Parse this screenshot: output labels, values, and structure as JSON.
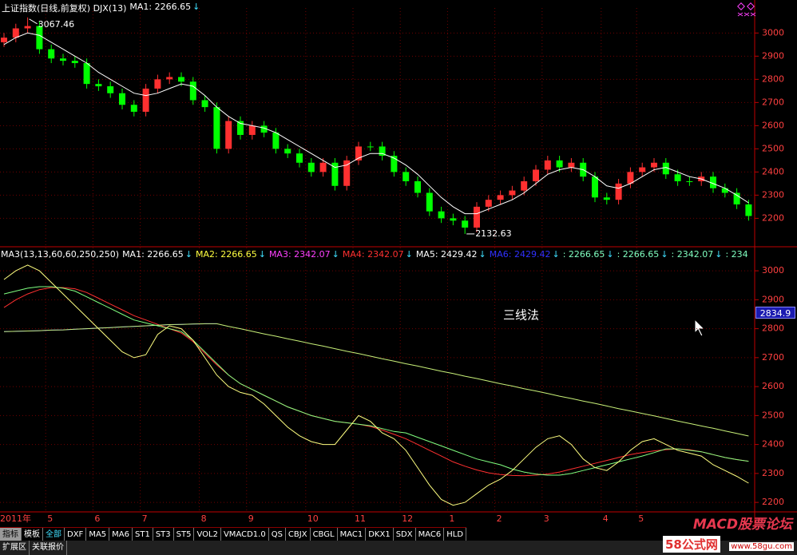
{
  "ui": {
    "top_header": "上证指数(日线,前复权) DJX(13)",
    "top_ma": "MA1: 2266.65",
    "arrow": "↓",
    "bottom_header": [
      {
        "text": "MA3(13,13,60,60,250,250)",
        "color": "#ffffff"
      },
      {
        "text": "MA1: 2266.65",
        "color": "#ffffff"
      },
      {
        "text": "MA2: 2266.65",
        "color": "#ffff40"
      },
      {
        "text": "MA3: 2342.07",
        "color": "#ff40ff"
      },
      {
        "text": "MA4: 2342.07",
        "color": "#ff3030"
      },
      {
        "text": "MA5: 2429.42",
        "color": "#ffffff"
      },
      {
        "text": "MA6: 2429.42",
        "color": "#3030ff"
      },
      {
        "text": ": 2266.65",
        "color": "#80ffc0"
      },
      {
        "text": ": 2266.65",
        "color": "#80ffc0"
      },
      {
        "text": ": 2342.07",
        "color": "#80ffc0"
      },
      {
        "text": ": 234",
        "color": "#80ffc0"
      }
    ],
    "cursor_value": "2834.9",
    "toolbar": [
      "指标",
      "模板",
      "全部",
      "DXF",
      "MA5",
      "MA6",
      "ST1",
      "ST3",
      "ST5",
      "VOL2",
      "VMACD1.0",
      "QS",
      "CBJX",
      "CBGL",
      "MAC1",
      "DKX1",
      "SDX",
      "MAC6",
      "HLD"
    ],
    "toolbar2": [
      "扩展区",
      "关联报价"
    ],
    "watermark_title": "MACD股票论坛",
    "watermark_site": "58公式网",
    "watermark_url": "www.58gu.com"
  },
  "chart_data": [
    {
      "type": "candlestick",
      "categories": [
        "2011年",
        null,
        null,
        null,
        "5",
        null,
        null,
        null,
        "6",
        null,
        null,
        null,
        "7",
        null,
        null,
        null,
        null,
        "8",
        null,
        null,
        null,
        "9",
        null,
        null,
        null,
        null,
        "10",
        null,
        null,
        null,
        "11",
        null,
        null,
        null,
        "12",
        null,
        null,
        null,
        "1",
        null,
        null,
        null,
        "2",
        null,
        null,
        null,
        "3",
        null,
        null,
        null,
        null,
        "4",
        null,
        null,
        "5",
        null,
        null,
        null,
        null,
        null,
        null,
        null,
        null,
        null
      ],
      "open": [
        2960,
        2980,
        3020,
        3030,
        2930,
        2890,
        2880,
        2870,
        2780,
        2770,
        2740,
        2690,
        2660,
        2760,
        2800,
        2810,
        2790,
        2710,
        2680,
        2500,
        2620,
        2560,
        2600,
        2570,
        2500,
        2480,
        2440,
        2400,
        2440,
        2340,
        2450,
        2510,
        2510,
        2470,
        2400,
        2360,
        2310,
        2230,
        2200,
        2190,
        2160,
        2250,
        2280,
        2300,
        2320,
        2360,
        2410,
        2450,
        2420,
        2440,
        2380,
        2290,
        2280,
        2350,
        2400,
        2420,
        2440,
        2390,
        2360,
        2360,
        2380,
        2330,
        2310,
        2260
      ],
      "high": [
        3000,
        3040,
        3067.46,
        3050,
        2950,
        2910,
        2900,
        2890,
        2800,
        2790,
        2760,
        2710,
        2780,
        2820,
        2830,
        2830,
        2810,
        2730,
        2700,
        2640,
        2640,
        2620,
        2620,
        2590,
        2520,
        2500,
        2460,
        2460,
        2460,
        2470,
        2530,
        2530,
        2530,
        2490,
        2420,
        2380,
        2330,
        2250,
        2220,
        2210,
        2270,
        2300,
        2320,
        2340,
        2380,
        2430,
        2470,
        2470,
        2460,
        2460,
        2400,
        2310,
        2370,
        2420,
        2440,
        2460,
        2460,
        2410,
        2380,
        2400,
        2400,
        2350,
        2330,
        2280
      ],
      "low": [
        2940,
        2960,
        3000,
        2910,
        2870,
        2860,
        2850,
        2760,
        2750,
        2720,
        2670,
        2640,
        2640,
        2740,
        2780,
        2770,
        2690,
        2660,
        2480,
        2480,
        2540,
        2540,
        2550,
        2480,
        2460,
        2420,
        2380,
        2380,
        2320,
        2320,
        2430,
        2490,
        2450,
        2380,
        2340,
        2290,
        2210,
        2180,
        2170,
        2132.63,
        2140,
        2230,
        2260,
        2280,
        2300,
        2340,
        2390,
        2400,
        2400,
        2360,
        2270,
        2260,
        2260,
        2330,
        2380,
        2400,
        2370,
        2340,
        2340,
        2340,
        2310,
        2290,
        2240,
        2190
      ],
      "close": [
        2980,
        3020,
        3030,
        2930,
        2890,
        2880,
        2870,
        2780,
        2770,
        2740,
        2690,
        2660,
        2760,
        2800,
        2810,
        2790,
        2710,
        2680,
        2500,
        2620,
        2560,
        2600,
        2570,
        2500,
        2480,
        2440,
        2400,
        2440,
        2340,
        2450,
        2510,
        2510,
        2470,
        2400,
        2360,
        2310,
        2230,
        2200,
        2190,
        2160,
        2250,
        2280,
        2300,
        2320,
        2360,
        2410,
        2450,
        2420,
        2440,
        2380,
        2290,
        2280,
        2350,
        2400,
        2420,
        2440,
        2390,
        2360,
        2360,
        2380,
        2330,
        2310,
        2260,
        2210
      ],
      "up_color": "#ff3030",
      "down_color": "#00ff00",
      "high_label": "3067.46",
      "low_label": "2132.63",
      "series": [
        {
          "color": "#ffffff",
          "values": [
            2950,
            2980,
            3000,
            2990,
            2960,
            2930,
            2900,
            2870,
            2830,
            2800,
            2770,
            2740,
            2730,
            2740,
            2760,
            2780,
            2770,
            2730,
            2680,
            2640,
            2610,
            2600,
            2590,
            2570,
            2540,
            2510,
            2480,
            2450,
            2420,
            2430,
            2460,
            2480,
            2480,
            2460,
            2430,
            2390,
            2340,
            2290,
            2250,
            2220,
            2220,
            2240,
            2260,
            2280,
            2310,
            2350,
            2390,
            2410,
            2420,
            2410,
            2380,
            2340,
            2330,
            2350,
            2380,
            2410,
            2420,
            2400,
            2380,
            2370,
            2350,
            2330,
            2300,
            2266.65
          ]
        }
      ],
      "ylim": [
        2091,
        3108
      ],
      "yticks": [
        2200,
        2300,
        2400,
        2500,
        2600,
        2700,
        2800,
        2900,
        3000
      ],
      "grid": true
    },
    {
      "type": "line",
      "annotation": "三线法",
      "series": [
        {
          "color": "#3030ff",
          "values": [
            2790,
            2791,
            2792,
            2793,
            2795,
            2796,
            2798,
            2800,
            2802,
            2804,
            2806,
            2808,
            2810,
            2812,
            2814,
            2815,
            2816,
            2817,
            2817,
            null,
            null,
            null,
            null,
            null,
            null,
            null,
            null,
            null,
            null,
            null,
            null,
            null,
            null,
            null,
            null,
            null,
            null,
            null,
            null,
            null,
            null,
            null,
            null,
            null,
            null,
            null,
            null,
            null,
            null,
            null,
            null,
            null,
            null,
            null,
            null,
            null,
            null,
            null,
            null,
            null,
            null,
            null,
            null,
            null
          ]
        },
        {
          "color": "#ff3030",
          "values": [
            2873,
            2900,
            2920,
            2935,
            2942,
            2942,
            2938,
            2925,
            2905,
            2885,
            2865,
            2845,
            2830,
            2815,
            2800,
            2785,
            2755,
            2715,
            2675,
            2640,
            2610,
            2590,
            2570,
            2550,
            2530,
            2515,
            2500,
            2490,
            2480,
            2475,
            2470,
            2462,
            2450,
            2435,
            2420,
            2400,
            2380,
            2360,
            2340,
            2325,
            2312,
            2302,
            2296,
            2293,
            2292,
            2294,
            2298,
            2305,
            2315,
            2325,
            2335,
            2345,
            2355,
            2365,
            2372,
            2378,
            2382,
            2385,
            2382,
            2375,
            2365,
            2355,
            2348,
            2342.07
          ]
        },
        {
          "color": "#c8f078",
          "values": [
            2790,
            2791,
            2792,
            2793,
            2795,
            2796,
            2798,
            2800,
            2802,
            2804,
            2806,
            2808,
            2810,
            2812,
            2814,
            2815,
            2816,
            2817,
            2817,
            2808,
            2800,
            2791,
            2782,
            2774,
            2765,
            2757,
            2748,
            2740,
            2731,
            2722,
            2714,
            2705,
            2696,
            2688,
            2679,
            2671,
            2662,
            2653,
            2645,
            2636,
            2628,
            2619,
            2610,
            2602,
            2593,
            2585,
            2576,
            2567,
            2559,
            2550,
            2542,
            2533,
            2524,
            2516,
            2507,
            2499,
            2490,
            2481,
            2473,
            2464,
            2456,
            2447,
            2438,
            2429.42
          ]
        },
        {
          "color": "#80ff80",
          "values": [
            2920,
            2930,
            2940,
            2945,
            2945,
            2940,
            2930,
            2910,
            2890,
            2870,
            2850,
            2830,
            2820,
            2810,
            2800,
            2790,
            2760,
            2720,
            2680,
            2640,
            2610,
            2590,
            2570,
            2550,
            2530,
            2515,
            2500,
            2490,
            2480,
            2475,
            2470,
            2465,
            2455,
            2445,
            2440,
            2425,
            2410,
            2395,
            2380,
            2365,
            2350,
            2340,
            2330,
            2315,
            2305,
            2298,
            2294,
            2294,
            2300,
            2310,
            2320,
            2330,
            2340,
            2350,
            2360,
            2372,
            2385,
            2385,
            2380,
            2375,
            2365,
            2355,
            2348,
            2342.07
          ]
        },
        {
          "color": "#ffff80",
          "values": [
            2970,
            3000,
            3020,
            3000,
            2960,
            2920,
            2880,
            2840,
            2800,
            2760,
            2720,
            2700,
            2710,
            2780,
            2810,
            2800,
            2760,
            2700,
            2640,
            2600,
            2580,
            2570,
            2540,
            2500,
            2460,
            2430,
            2410,
            2400,
            2400,
            2450,
            2500,
            2480,
            2440,
            2420,
            2380,
            2320,
            2260,
            2210,
            2190,
            2200,
            2230,
            2260,
            2280,
            2310,
            2350,
            2390,
            2420,
            2430,
            2400,
            2350,
            2320,
            2310,
            2340,
            2380,
            2410,
            2420,
            2400,
            2380,
            2370,
            2360,
            2330,
            2310,
            2290,
            2266.65
          ]
        }
      ],
      "ylim": [
        2170,
        3072
      ],
      "yticks": [
        2200,
        2300,
        2400,
        2500,
        2600,
        2700,
        2800,
        2900,
        3000
      ],
      "grid": true
    }
  ]
}
